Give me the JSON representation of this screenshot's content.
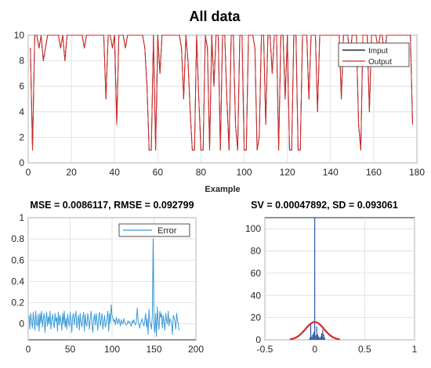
{
  "chart_data": [
    {
      "type": "line",
      "title": "All data",
      "xlabel": "Example",
      "ylabel": "",
      "xlim": [
        0,
        180
      ],
      "ylim": [
        0,
        10
      ],
      "xticks": [
        0,
        20,
        40,
        60,
        80,
        100,
        120,
        140,
        160,
        180
      ],
      "yticks": [
        0,
        2,
        4,
        6,
        8,
        10
      ],
      "grid": true,
      "legend_position": "top-right",
      "series": [
        {
          "name": "Imput",
          "color": "#000000",
          "values": [
            9,
            1,
            10,
            10,
            9,
            10,
            8,
            9,
            10,
            10,
            10,
            10,
            10,
            10,
            9,
            10,
            8,
            10,
            10,
            10,
            10,
            10,
            10,
            10,
            10,
            9,
            10,
            10,
            10,
            10,
            10,
            10,
            10,
            10,
            10,
            5,
            10,
            10,
            9,
            10,
            3,
            10,
            10,
            10,
            9,
            10,
            10,
            10,
            10,
            10,
            10,
            10,
            10,
            9,
            6,
            1,
            1,
            10,
            1,
            10,
            7,
            10,
            10,
            10,
            10,
            10,
            10,
            10,
            10,
            10,
            9,
            5,
            10,
            8,
            4,
            1,
            1,
            10,
            5,
            1,
            1,
            10,
            9,
            1,
            10,
            6,
            10,
            10,
            1,
            10,
            10,
            5,
            1,
            10,
            10,
            3,
            1,
            10,
            10,
            1,
            1,
            10,
            10,
            10,
            9,
            1,
            2,
            10,
            10,
            3,
            10,
            10,
            7,
            10,
            10,
            1,
            10,
            10,
            5,
            10,
            1,
            1,
            10,
            10,
            1,
            1,
            10,
            10,
            10,
            5,
            10,
            10,
            10,
            4,
            10,
            10,
            10,
            10,
            10,
            10,
            10,
            10,
            10,
            10,
            5,
            10,
            10,
            10,
            8,
            10,
            10,
            10,
            3,
            1,
            10,
            10,
            10,
            4,
            10,
            10,
            10,
            9,
            10,
            10,
            8,
            10,
            10,
            10,
            10,
            10,
            10,
            10,
            10,
            10,
            10,
            10,
            10,
            3
          ]
        },
        {
          "name": "Output",
          "color": "#d62728",
          "values": [
            9,
            1,
            10,
            10,
            9,
            10,
            8,
            9,
            10,
            10,
            10,
            10,
            10,
            10,
            9,
            10,
            8,
            10,
            10,
            10,
            10,
            10,
            10,
            10,
            10,
            9,
            10,
            10,
            10,
            10,
            10,
            10,
            10,
            10,
            10,
            5,
            10,
            10,
            9,
            10,
            3,
            10,
            10,
            10,
            9,
            10,
            10,
            10,
            10,
            10,
            10,
            10,
            10,
            9,
            6,
            1,
            1,
            10,
            1,
            10,
            7,
            10,
            10,
            10,
            10,
            10,
            10,
            10,
            10,
            10,
            9,
            5,
            10,
            8,
            4,
            1,
            1,
            10,
            5,
            1,
            1,
            10,
            9,
            1,
            10,
            6,
            10,
            10,
            1,
            10,
            10,
            5,
            1,
            10,
            10,
            3,
            1,
            10,
            10,
            1,
            1,
            10,
            10,
            10,
            9,
            1,
            2,
            10,
            10,
            3,
            10,
            10,
            7,
            10,
            10,
            1,
            10,
            10,
            5,
            10,
            1,
            1,
            10,
            10,
            1,
            1,
            10,
            10,
            10,
            5,
            10,
            10,
            10,
            4,
            10,
            10,
            10,
            10,
            10,
            10,
            10,
            10,
            10,
            10,
            5,
            10,
            10,
            10,
            8,
            10,
            10,
            10,
            3,
            1,
            10,
            10,
            10,
            4,
            10,
            10,
            10,
            9,
            10,
            10,
            8,
            10,
            10,
            10,
            10,
            10,
            10,
            10,
            10,
            10,
            10,
            10,
            10,
            3
          ]
        }
      ]
    },
    {
      "type": "line",
      "title": "MSE = 0.0086117, RMSE = 0.092799",
      "xlabel": "",
      "ylabel": "",
      "xlim": [
        0,
        200
      ],
      "ylim": [
        -0.15,
        1
      ],
      "xticks": [
        0,
        50,
        100,
        150,
        200
      ],
      "yticks": [
        0,
        0.2,
        0.4,
        0.6,
        0.8,
        1
      ],
      "grid": true,
      "legend_position": "top-right",
      "series": [
        {
          "name": "Error",
          "color": "#3a9bd9",
          "values": [
            0.08,
            -0.05,
            0.1,
            0.02,
            -0.04,
            0.11,
            0.03,
            -0.06,
            0.12,
            0.0,
            -0.02,
            0.09,
            -0.07,
            0.1,
            0.01,
            0.12,
            -0.03,
            0.05,
            0.1,
            -0.08,
            0.04,
            0.11,
            -0.02,
            0.07,
            0.0,
            0.12,
            -0.05,
            0.03,
            0.09,
            0.01,
            -0.04,
            0.1,
            0.02,
            0.06,
            -0.07,
            0.11,
            -0.01,
            0.08,
            0.03,
            -0.06,
            0.1,
            0.0,
            0.12,
            -0.03,
            0.05,
            -0.05,
            0.09,
            0.02,
            -0.02,
            0.11,
            0.04,
            -0.08,
            0.07,
            0.1,
            -0.01,
            0.06,
            0.12,
            -0.04,
            0.03,
            0.08,
            -0.06,
            0.1,
            0.02,
            -0.03,
            0.05,
            0.11,
            -0.07,
            0.09,
            0.0,
            -0.02,
            0.1,
            0.04,
            -0.05,
            0.06,
            0.12,
            0.0,
            -0.08,
            0.05,
            0.09,
            -0.01,
            0.1,
            0.03,
            -0.06,
            0.07,
            0.11,
            -0.02,
            0.04,
            0.1,
            -0.05,
            0.02,
            0.08,
            -0.03,
            0.0,
            0.06,
            0.12,
            -0.07,
            0.1,
            0.01,
            0.18,
            0.08,
            0.05,
            0.02,
            0.04,
            -0.01,
            0.06,
            0.03,
            0.0,
            0.05,
            0.02,
            -0.02,
            0.04,
            0.01,
            0.0,
            0.05,
            0.02,
            0.0,
            -0.01,
            0.0,
            0.03,
            0.01,
            0.02,
            0.0,
            -0.02,
            0.03,
            0.01,
            0.04,
            0.0,
            -0.01,
            0.02,
            0.15,
            0.03,
            0.0,
            -0.04,
            0.01,
            0.02,
            0.05,
            0.0,
            -0.02,
            0.03,
            0.1,
            -0.03,
            0.05,
            -0.1,
            0.14,
            0.02,
            0.0,
            -0.05,
            0.08,
            0.8,
            0.0,
            -0.08,
            0.1,
            -0.12,
            0.16,
            0.03,
            -0.05,
            0.12,
            0.06,
            0.1,
            -0.04,
            0.08,
            0.02,
            -0.06,
            0.1,
            0.04,
            0.0,
            0.12,
            -0.02,
            0.05,
            0.03,
            0.01,
            -0.1,
            0.08,
            0.06,
            0.02,
            -0.05,
            0.1,
            0.03,
            0.0,
            -0.06
          ]
        }
      ]
    },
    {
      "type": "bar",
      "title": "SV = 0.00047892, SD = 0.093061",
      "xlabel": "",
      "ylabel": "",
      "xlim": [
        -0.5,
        1
      ],
      "ylim": [
        0,
        110
      ],
      "xticks": [
        -0.5,
        0,
        0.5,
        1
      ],
      "yticks": [
        0,
        20,
        40,
        60,
        80,
        100
      ],
      "grid": true,
      "bar_color": "#1f4e9c",
      "bins": [
        -0.05,
        -0.04,
        -0.03,
        -0.02,
        -0.01,
        0.0,
        0.01,
        0.02,
        0.03,
        0.04,
        0.05,
        0.06,
        0.07,
        0.08,
        0.09,
        0.1
      ],
      "counts": [
        2,
        15,
        3,
        5,
        7,
        110,
        4,
        12,
        5,
        3,
        2,
        3,
        6,
        9,
        5,
        2
      ],
      "fit_curve": {
        "type": "normal",
        "color": "#d62728",
        "mean": 0.0,
        "sd": 0.093061,
        "peak": 16
      }
    }
  ]
}
